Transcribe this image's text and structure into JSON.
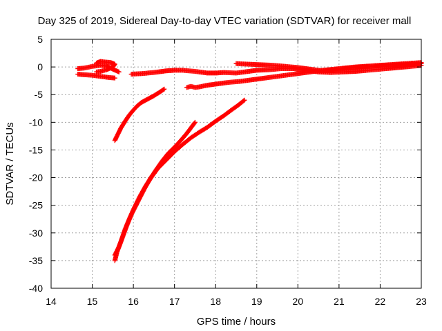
{
  "chart_data": {
    "type": "scatter",
    "title": "Day 325 of 2019, Sidereal Day-to-day VTEC variation (SDTVAR) for receiver mall",
    "xlabel": "GPS time / hours",
    "ylabel": "SDTVAR / TECUs",
    "xlim": [
      14,
      23
    ],
    "ylim": [
      -40,
      5
    ],
    "xticks": [
      14,
      15,
      16,
      17,
      18,
      19,
      20,
      21,
      22,
      23
    ],
    "yticks": [
      5,
      0,
      -5,
      -10,
      -15,
      -20,
      -25,
      -30,
      -35,
      -40
    ],
    "grid": true,
    "legend": "none",
    "marker": "plus",
    "color": "#ff0000",
    "series": [
      {
        "points": [
          [
            14.65,
            -0.3
          ],
          [
            14.8,
            -0.2
          ],
          [
            15.0,
            0.1
          ],
          [
            15.2,
            0.3
          ],
          [
            15.35,
            0.2
          ],
          [
            15.5,
            -0.4
          ],
          [
            15.65,
            -0.9
          ]
        ]
      },
      {
        "points": [
          [
            14.65,
            -1.3
          ],
          [
            14.8,
            -1.4
          ],
          [
            15.0,
            -1.5
          ],
          [
            15.2,
            -1.7
          ],
          [
            15.4,
            -1.9
          ],
          [
            15.55,
            -2.0
          ]
        ]
      },
      {
        "points": [
          [
            15.1,
            0.7
          ],
          [
            15.2,
            1.0
          ],
          [
            15.3,
            0.9
          ],
          [
            15.45,
            0.8
          ],
          [
            15.55,
            0.5
          ],
          [
            15.5,
            0.0
          ],
          [
            15.35,
            -0.5
          ],
          [
            15.2,
            -0.8
          ],
          [
            15.1,
            -0.9
          ]
        ]
      },
      {
        "points": [
          [
            15.95,
            -1.3
          ],
          [
            16.2,
            -1.2
          ],
          [
            16.5,
            -1.0
          ],
          [
            16.8,
            -0.7
          ],
          [
            17.0,
            -0.6
          ],
          [
            17.2,
            -0.6
          ],
          [
            17.5,
            -0.8
          ],
          [
            17.8,
            -1.1
          ],
          [
            18.0,
            -1.1
          ],
          [
            18.2,
            -1.0
          ],
          [
            18.5,
            -1.1
          ],
          [
            18.8,
            -0.8
          ],
          [
            19.0,
            -0.6
          ],
          [
            19.3,
            -0.5
          ],
          [
            19.6,
            -0.3
          ],
          [
            19.9,
            -0.3
          ]
        ]
      },
      {
        "points": [
          [
            15.55,
            -13.3
          ],
          [
            15.6,
            -12.5
          ],
          [
            15.7,
            -11.0
          ],
          [
            15.8,
            -9.8
          ],
          [
            15.9,
            -8.7
          ],
          [
            16.0,
            -7.8
          ],
          [
            16.1,
            -7.0
          ],
          [
            16.2,
            -6.4
          ],
          [
            16.35,
            -5.8
          ],
          [
            16.5,
            -5.2
          ],
          [
            16.65,
            -4.5
          ],
          [
            16.75,
            -4.0
          ]
        ]
      },
      {
        "points": [
          [
            17.3,
            -3.7
          ],
          [
            17.4,
            -3.5
          ],
          [
            17.5,
            -3.7
          ],
          [
            17.6,
            -3.6
          ],
          [
            17.8,
            -3.3
          ],
          [
            18.0,
            -3.1
          ],
          [
            18.3,
            -2.8
          ],
          [
            18.6,
            -2.6
          ],
          [
            19.0,
            -2.2
          ],
          [
            19.4,
            -1.8
          ],
          [
            19.8,
            -1.4
          ],
          [
            20.2,
            -1.0
          ],
          [
            20.6,
            -0.6
          ],
          [
            21.0,
            -0.3
          ],
          [
            21.4,
            0.0
          ],
          [
            21.8,
            0.2
          ],
          [
            22.2,
            0.4
          ],
          [
            22.6,
            0.6
          ],
          [
            23.0,
            0.8
          ]
        ]
      },
      {
        "points": [
          [
            18.5,
            0.6
          ],
          [
            18.8,
            0.5
          ],
          [
            19.1,
            0.4
          ],
          [
            19.4,
            0.3
          ],
          [
            19.7,
            0.1
          ],
          [
            20.0,
            -0.1
          ],
          [
            20.3,
            -0.4
          ],
          [
            20.6,
            -0.7
          ],
          [
            20.9,
            -0.5
          ],
          [
            21.2,
            -0.2
          ],
          [
            21.5,
            0.0
          ],
          [
            21.8,
            0.1
          ],
          [
            22.1,
            0.3
          ],
          [
            22.4,
            0.4
          ],
          [
            22.7,
            0.5
          ],
          [
            23.0,
            0.6
          ]
        ]
      },
      {
        "points": [
          [
            19.9,
            -0.3
          ],
          [
            20.2,
            -0.6
          ],
          [
            20.5,
            -0.9
          ],
          [
            20.8,
            -1.0
          ],
          [
            21.1,
            -0.9
          ],
          [
            21.4,
            -0.8
          ],
          [
            21.7,
            -0.6
          ],
          [
            22.0,
            -0.4
          ],
          [
            22.3,
            -0.2
          ],
          [
            22.6,
            0.0
          ],
          [
            22.9,
            0.2
          ],
          [
            23.0,
            0.3
          ]
        ]
      },
      {
        "points": [
          [
            15.55,
            -35.0
          ],
          [
            15.6,
            -33.5
          ],
          [
            15.7,
            -31.5
          ],
          [
            15.8,
            -29.3
          ],
          [
            15.9,
            -27.5
          ],
          [
            16.0,
            -25.8
          ],
          [
            16.15,
            -23.5
          ],
          [
            16.3,
            -21.5
          ],
          [
            16.45,
            -19.8
          ],
          [
            16.6,
            -18.3
          ],
          [
            16.8,
            -16.8
          ],
          [
            17.0,
            -15.3
          ],
          [
            17.2,
            -14.0
          ],
          [
            17.4,
            -12.8
          ],
          [
            17.6,
            -11.8
          ],
          [
            17.8,
            -10.9
          ],
          [
            18.0,
            -9.8
          ],
          [
            18.2,
            -8.8
          ],
          [
            18.4,
            -7.7
          ],
          [
            18.55,
            -6.9
          ],
          [
            18.7,
            -6.0
          ]
        ]
      },
      {
        "points": [
          [
            15.55,
            -34.0
          ],
          [
            15.65,
            -32.5
          ],
          [
            15.75,
            -30.5
          ],
          [
            15.85,
            -28.5
          ],
          [
            15.95,
            -26.7
          ],
          [
            16.1,
            -24.5
          ],
          [
            16.25,
            -22.3
          ],
          [
            16.4,
            -20.3
          ],
          [
            16.55,
            -18.6
          ],
          [
            16.7,
            -17.0
          ],
          [
            16.85,
            -15.6
          ],
          [
            17.0,
            -14.5
          ],
          [
            17.15,
            -13.3
          ],
          [
            17.3,
            -12.0
          ],
          [
            17.4,
            -11.0
          ],
          [
            17.5,
            -10.0
          ]
        ]
      }
    ]
  }
}
